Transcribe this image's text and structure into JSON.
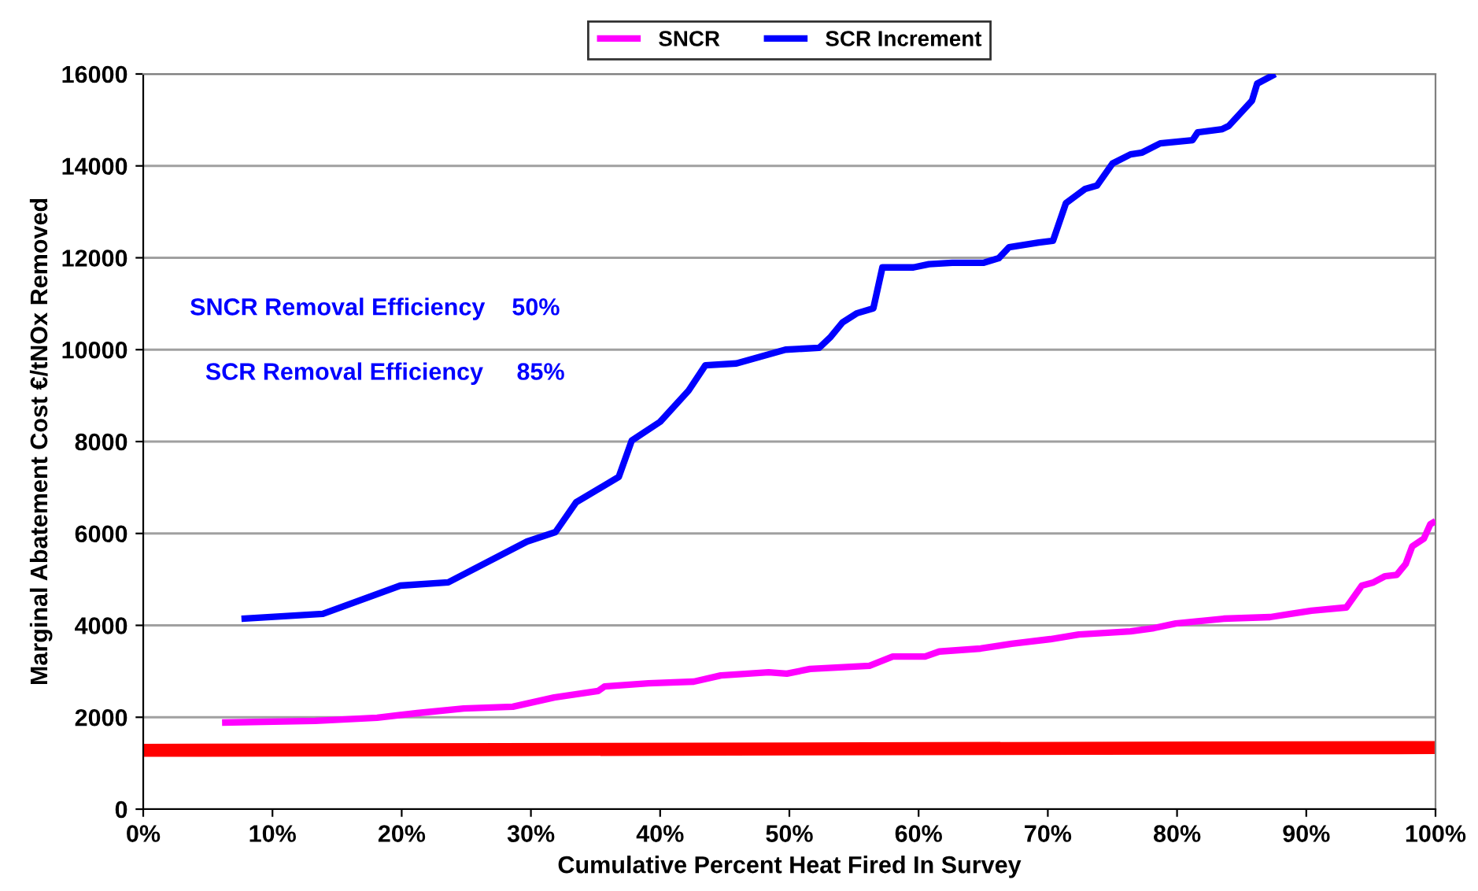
{
  "chart_data": {
    "type": "line",
    "xlabel": "Cumulative Percent Heat Fired In Survey",
    "ylabel": "Marginal Abatement Cost €/tNOx Removed",
    "annotations": [
      "SNCR Removal Efficiency    50%",
      "SCR Removal Efficiency     85%"
    ],
    "xlim": [
      0,
      100
    ],
    "ylim": [
      0,
      16000
    ],
    "xticks": [
      {
        "value": 0,
        "label": "0%"
      },
      {
        "value": 10,
        "label": "10%"
      },
      {
        "value": 20,
        "label": "20%"
      },
      {
        "value": 30,
        "label": "30%"
      },
      {
        "value": 40,
        "label": "40%"
      },
      {
        "value": 50,
        "label": "50%"
      },
      {
        "value": 60,
        "label": "60%"
      },
      {
        "value": 70,
        "label": "70%"
      },
      {
        "value": 80,
        "label": "80%"
      },
      {
        "value": 90,
        "label": "90%"
      },
      {
        "value": 100,
        "label": "100%"
      }
    ],
    "yticks": [
      0,
      2000,
      4000,
      6000,
      8000,
      10000,
      12000,
      14000,
      16000
    ],
    "grid": "y",
    "legend": "top",
    "marker": "none",
    "line_style": "solid",
    "series": [
      {
        "name": "SNCR",
        "color": "#ff00ff",
        "x": [
          6.1,
          13.3,
          18.1,
          21.2,
          24.8,
          28.6,
          31.8,
          35.2,
          35.7,
          39.1,
          42.6,
          44.7,
          48.4,
          49.8,
          51.6,
          56.2,
          58.0,
          60.5,
          61.6,
          64.8,
          67.2,
          70.2,
          72.4,
          76.4,
          78.2,
          79.9,
          83.6,
          87.2,
          88.8,
          90.4,
          93.1,
          94.3,
          95.2,
          96.1,
          97.0,
          97.7,
          98.2,
          99.1,
          99.6,
          100
        ],
        "values": [
          1885,
          1920,
          1990,
          2090,
          2190,
          2230,
          2430,
          2570,
          2670,
          2740,
          2775,
          2910,
          2980,
          2950,
          3050,
          3120,
          3320,
          3320,
          3430,
          3495,
          3600,
          3700,
          3800,
          3870,
          3940,
          4040,
          4145,
          4180,
          4250,
          4320,
          4390,
          4865,
          4935,
          5070,
          5100,
          5340,
          5720,
          5890,
          6200,
          6270
        ]
      },
      {
        "name": "SCR Increment",
        "color": "#0000ff",
        "x": [
          7.6,
          13.9,
          19.9,
          23.6,
          29.7,
          31.9,
          33.5,
          36.8,
          37.8,
          40.0,
          42.2,
          43.5,
          45.9,
          49.7,
          52.3,
          53.2,
          54.1,
          55.2,
          56.5,
          57.2,
          59.6,
          60.8,
          62.6,
          65.0,
          66.2,
          67.0,
          69.3,
          70.4,
          71.4,
          72.9,
          73.8,
          75.0,
          76.4,
          77.3,
          78.7,
          81.2,
          81.6,
          83.5,
          84.0,
          85.8,
          86.2,
          87.6
        ],
        "values": [
          4145,
          4250,
          4865,
          4935,
          5825,
          6030,
          6680,
          7230,
          8020,
          8430,
          9110,
          9660,
          9700,
          10000,
          10040,
          10280,
          10590,
          10790,
          10900,
          11790,
          11790,
          11860,
          11890,
          11890,
          11990,
          12230,
          12330,
          12370,
          13190,
          13500,
          13570,
          14050,
          14250,
          14290,
          14490,
          14560,
          14730,
          14800,
          14870,
          15420,
          15790,
          16000
        ]
      },
      {
        "color": "#ff0000",
        "x": [
          0,
          100
        ],
        "values": [
          1280,
          1340
        ]
      }
    ]
  }
}
